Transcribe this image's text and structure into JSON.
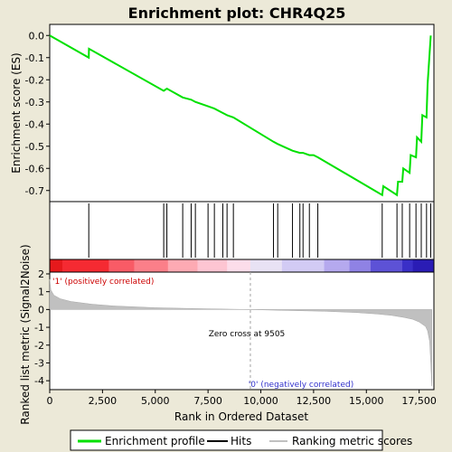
{
  "chart_data": {
    "type": "line",
    "title": "Enrichment plot: CHR4Q25",
    "panels": {
      "es": {
        "ylabel": "Enrichment score (ES)",
        "ylim": [
          -0.75,
          0.05
        ],
        "yticks": [
          "0.0",
          "-0.1",
          "-0.2",
          "-0.3",
          "-0.4",
          "-0.5",
          "-0.6",
          "-0.7"
        ],
        "ytick_values": [
          0.0,
          -0.1,
          -0.2,
          -0.3,
          -0.4,
          -0.5,
          -0.6,
          -0.7
        ],
        "line_color": "#00E000",
        "series": [
          {
            "name": "Enrichment profile",
            "x": [
              0,
              1850,
              1860,
              5400,
              5550,
              6300,
              6700,
              6900,
              7500,
              7800,
              8200,
              8400,
              8700,
              10600,
              10800,
              11500,
              11850,
              12000,
              12300,
              12500,
              12700,
              15750,
              15800,
              16450,
              16500,
              16700,
              16750,
              17050,
              17100,
              17350,
              17400,
              17600,
              17650,
              17850,
              17900,
              18050
            ],
            "y": [
              0.0,
              -0.1,
              -0.06,
              -0.25,
              -0.24,
              -0.28,
              -0.29,
              -0.3,
              -0.32,
              -0.33,
              -0.35,
              -0.36,
              -0.37,
              -0.48,
              -0.49,
              -0.52,
              -0.53,
              -0.53,
              -0.54,
              -0.54,
              -0.55,
              -0.72,
              -0.68,
              -0.72,
              -0.66,
              -0.66,
              -0.6,
              -0.62,
              -0.54,
              -0.55,
              -0.46,
              -0.48,
              -0.36,
              -0.37,
              -0.22,
              0.0
            ]
          }
        ]
      },
      "hits": {
        "positions": [
          1850,
          5400,
          5550,
          6300,
          6700,
          6900,
          7500,
          7800,
          8200,
          8400,
          8700,
          10600,
          10800,
          11500,
          11850,
          12000,
          12300,
          12700,
          15750,
          16450,
          16700,
          17050,
          17350,
          17600,
          17850,
          18050
        ]
      },
      "metric": {
        "ylabel": "Ranked list metric (Signal2Noise)",
        "xlabel": "Rank in Ordered Dataset",
        "ylim": [
          -4.5,
          2.1
        ],
        "yticks": [
          "2",
          "1",
          "0",
          "-1",
          "-2",
          "-3",
          "-4"
        ],
        "ytick_values": [
          2,
          1,
          0,
          -1,
          -2,
          -3,
          -4
        ],
        "curve_x": [
          0,
          50,
          200,
          500,
          1000,
          2000,
          3000,
          5000,
          7000,
          9505,
          11000,
          13000,
          14500,
          15500,
          16200,
          16800,
          17200,
          17500,
          17800,
          17900,
          18000,
          18050,
          18100
        ],
        "curve_y": [
          1.7,
          1.1,
          0.8,
          0.6,
          0.45,
          0.3,
          0.2,
          0.1,
          0.05,
          0.0,
          -0.05,
          -0.1,
          -0.17,
          -0.25,
          -0.33,
          -0.45,
          -0.55,
          -0.7,
          -0.95,
          -1.2,
          -1.8,
          -3.0,
          -4.3
        ],
        "zero_cross_label": "Zero cross at 9505",
        "zero_cross": 9505,
        "pos_label": "'1' (positively correlated)",
        "neg_label": "'0' (negatively correlated)"
      }
    },
    "xlim": [
      0,
      18200
    ],
    "xticks": [
      "0",
      "2,500",
      "5,000",
      "7,500",
      "10,000",
      "12,500",
      "15,000",
      "17,500"
    ],
    "xtick_values": [
      0,
      2500,
      5000,
      7500,
      10000,
      12500,
      15000,
      17500
    ],
    "legend": {
      "placement": "bottom",
      "items": [
        "Enrichment profile",
        "Hits",
        "Ranking metric scores"
      ]
    },
    "colorbar": {
      "stops": [
        {
          "x": 0,
          "color": "#E6191C"
        },
        {
          "x": 600,
          "color": "#F52A32"
        },
        {
          "x": 2800,
          "color": "#F95B66"
        },
        {
          "x": 4000,
          "color": "#FB7F89"
        },
        {
          "x": 5600,
          "color": "#FDAAB3"
        },
        {
          "x": 7000,
          "color": "#FDC5D2"
        },
        {
          "x": 8400,
          "color": "#FCDDEA"
        },
        {
          "x": 9505,
          "color": "#E8E2F4"
        },
        {
          "x": 11000,
          "color": "#D2CBF4"
        },
        {
          "x": 13000,
          "color": "#B5A9EE"
        },
        {
          "x": 14200,
          "color": "#8F82E4"
        },
        {
          "x": 15200,
          "color": "#5D52D6"
        },
        {
          "x": 16700,
          "color": "#3A2FC7"
        },
        {
          "x": 17200,
          "color": "#2A1CB5"
        },
        {
          "x": 18200,
          "color": "#1A0A9E"
        }
      ]
    }
  }
}
